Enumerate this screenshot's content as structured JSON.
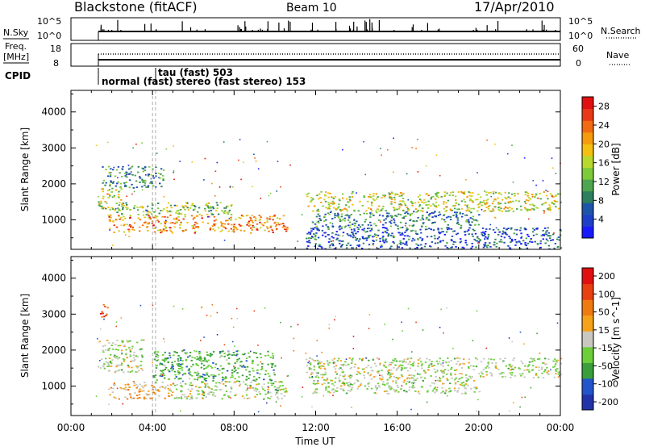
{
  "header": {
    "station": "Blackstone (fitACF)",
    "beam": "Beam 10",
    "date": "17/Apr/2010"
  },
  "summary_panels": {
    "nsky": {
      "label": "N.Sky",
      "ticks_left": [
        "10^5",
        "10^0"
      ],
      "ticks_right": [
        "10^5",
        "10^0"
      ],
      "right_label": "N.Search"
    },
    "freq": {
      "label_line1": "Freq.",
      "label_line2": "[MHz]",
      "ticks_left": [
        "18",
        "8"
      ],
      "ticks_right": [
        "60",
        "0"
      ],
      "right_label": "Nave"
    },
    "cpid": {
      "label": "CPID",
      "annotations": [
        "tau (fast) 503",
        "normal (fast)",
        "stereo (fast stereo) 153"
      ]
    }
  },
  "chart_data": [
    {
      "type": "heatmap",
      "title": "",
      "xlabel": "",
      "ylabel": "Slant Range [km]",
      "x_range_hours": [
        0,
        24
      ],
      "y_ticks": [
        1000,
        2000,
        3000,
        4000
      ],
      "ylim": [
        180,
        4600
      ],
      "colorbar": {
        "label": "Power [dB]",
        "ticks": [
          "4",
          "8",
          "12",
          "16",
          "20",
          "24",
          "28"
        ],
        "colors": [
          "#1a1aff",
          "#1e3fc8",
          "#1f55a8",
          "#2e7f5e",
          "#4da64d",
          "#7ecb3a",
          "#b9d82e",
          "#f3c012",
          "#f59a0d",
          "#f26a12",
          "#e83818",
          "#e01010"
        ]
      },
      "regions": [
        {
          "t0": 1.8,
          "t1": 10.6,
          "r0": 650,
          "r1": 1150,
          "level": 0.75
        },
        {
          "t0": 2.0,
          "t1": 8.0,
          "r0": 1150,
          "r1": 1500,
          "level": 0.45
        },
        {
          "t0": 1.3,
          "t1": 2.5,
          "r0": 1300,
          "r1": 1900,
          "level": 0.55
        },
        {
          "t0": 1.5,
          "t1": 4.5,
          "r0": 1900,
          "r1": 2500,
          "level": 0.3
        },
        {
          "t0": 11.5,
          "t1": 24.0,
          "r0": 1250,
          "r1": 1800,
          "level": 0.55
        },
        {
          "t0": 11.8,
          "t1": 20.0,
          "r0": 800,
          "r1": 1250,
          "level": 0.25
        },
        {
          "t0": 11.5,
          "t1": 24.0,
          "r0": 200,
          "r1": 800,
          "level": 0.15
        }
      ]
    },
    {
      "type": "heatmap",
      "title": "",
      "xlabel": "Time UT",
      "ylabel": "Slant Range [km]",
      "x_range_hours": [
        0,
        24
      ],
      "x_ticks": [
        "00:00",
        "04:00",
        "08:00",
        "12:00",
        "16:00",
        "20:00",
        "00:00"
      ],
      "y_ticks": [
        1000,
        2000,
        3000,
        4000
      ],
      "ylim": [
        180,
        4600
      ],
      "colorbar": {
        "label": "Velocity [m s^-1]",
        "ticks": [
          "200",
          "100",
          "50",
          "15",
          "-15",
          "-50",
          "-100",
          "-200"
        ],
        "colors": [
          "#2233aa",
          "#2255cc",
          "#3a9f3a",
          "#6ccf3a",
          "#c8c8c0",
          "#f5a21a",
          "#f07a12",
          "#e84010",
          "#e01010"
        ]
      },
      "regions": [
        {
          "t0": 1.8,
          "t1": 5.0,
          "r0": 650,
          "r1": 1150,
          "level": 0.6
        },
        {
          "t0": 5.0,
          "t1": 10.6,
          "r0": 650,
          "r1": 1150,
          "level": 0.45
        },
        {
          "t0": 4.0,
          "t1": 10.0,
          "r0": 1150,
          "r1": 2000,
          "level": 0.3
        },
        {
          "t0": 1.3,
          "t1": 3.5,
          "r0": 1400,
          "r1": 2300,
          "level": 0.45
        },
        {
          "t0": 1.4,
          "t1": 1.8,
          "r0": 2900,
          "r1": 3300,
          "level": 0.85
        },
        {
          "t0": 11.5,
          "t1": 24.0,
          "r0": 1250,
          "r1": 1800,
          "level": 0.45
        },
        {
          "t0": 11.8,
          "t1": 20.0,
          "r0": 800,
          "r1": 1250,
          "level": 0.45
        }
      ]
    }
  ]
}
